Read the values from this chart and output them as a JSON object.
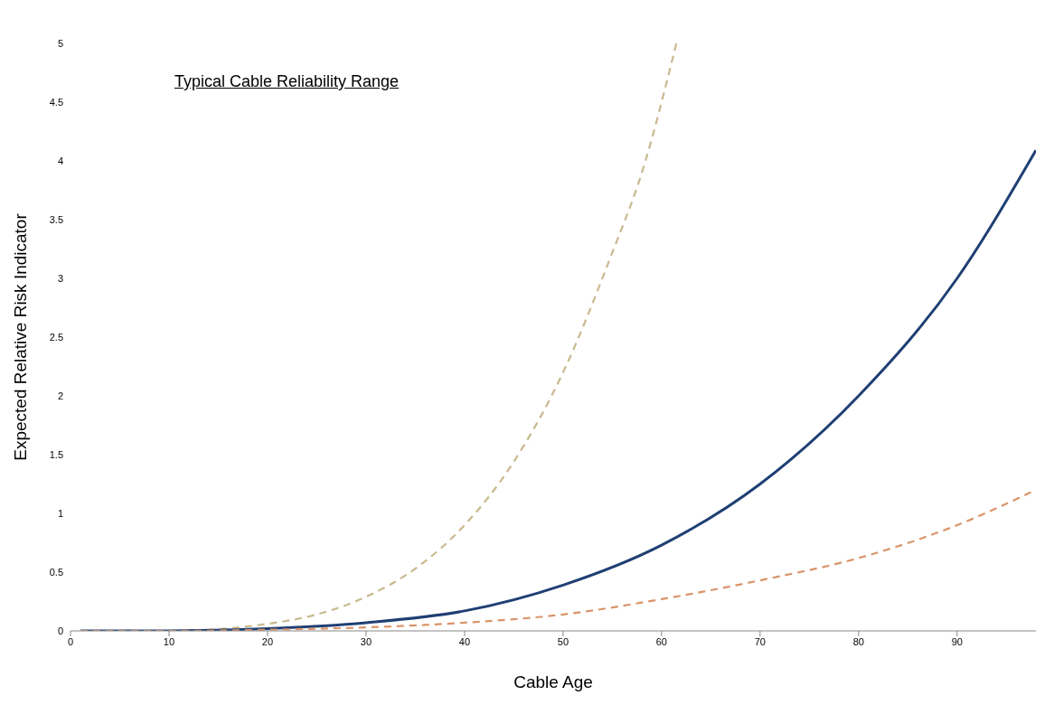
{
  "chart_data": {
    "type": "line",
    "xlabel": "Cable Age",
    "ylabel": "Expected Relative Risk Indicator",
    "annotations": [
      "Typical Cable Reliability Range"
    ],
    "xlim": [
      0,
      98
    ],
    "xticks": [
      0,
      10,
      20,
      30,
      40,
      50,
      60,
      70,
      80,
      90
    ],
    "ylim": [
      0,
      5
    ],
    "yticks": [
      0,
      0.5,
      1,
      1.5,
      2,
      2.5,
      3,
      3.5,
      4,
      4.5,
      5
    ],
    "grid": false,
    "legend": false,
    "marker": "none",
    "series": [
      {
        "color": "#c9b98f",
        "line_style": "dashed",
        "x": [
          1,
          10,
          20,
          25,
          30,
          35,
          40,
          45,
          50,
          55,
          58,
          61.5
        ],
        "values": [
          0,
          0,
          0.06,
          0.14,
          0.29,
          0.53,
          0.9,
          1.44,
          2.2,
          3.22,
          3.9,
          5
        ]
      },
      {
        "color": "#1f3f73",
        "line_style": "solid",
        "x": [
          1,
          10,
          20,
          30,
          40,
          50,
          60,
          70,
          80,
          90,
          98
        ],
        "values": [
          0,
          0,
          0.02,
          0.07,
          0.17,
          0.39,
          0.73,
          1.25,
          2,
          3,
          4.09
        ]
      },
      {
        "color": "#d9946a",
        "line_style": "dashed",
        "x": [
          1,
          10,
          20,
          30,
          40,
          50,
          60,
          70,
          80,
          90,
          98
        ],
        "values": [
          0,
          0,
          0.01,
          0.03,
          0.07,
          0.14,
          0.27,
          0.43,
          0.62,
          0.9,
          1.2
        ]
      }
    ]
  }
}
